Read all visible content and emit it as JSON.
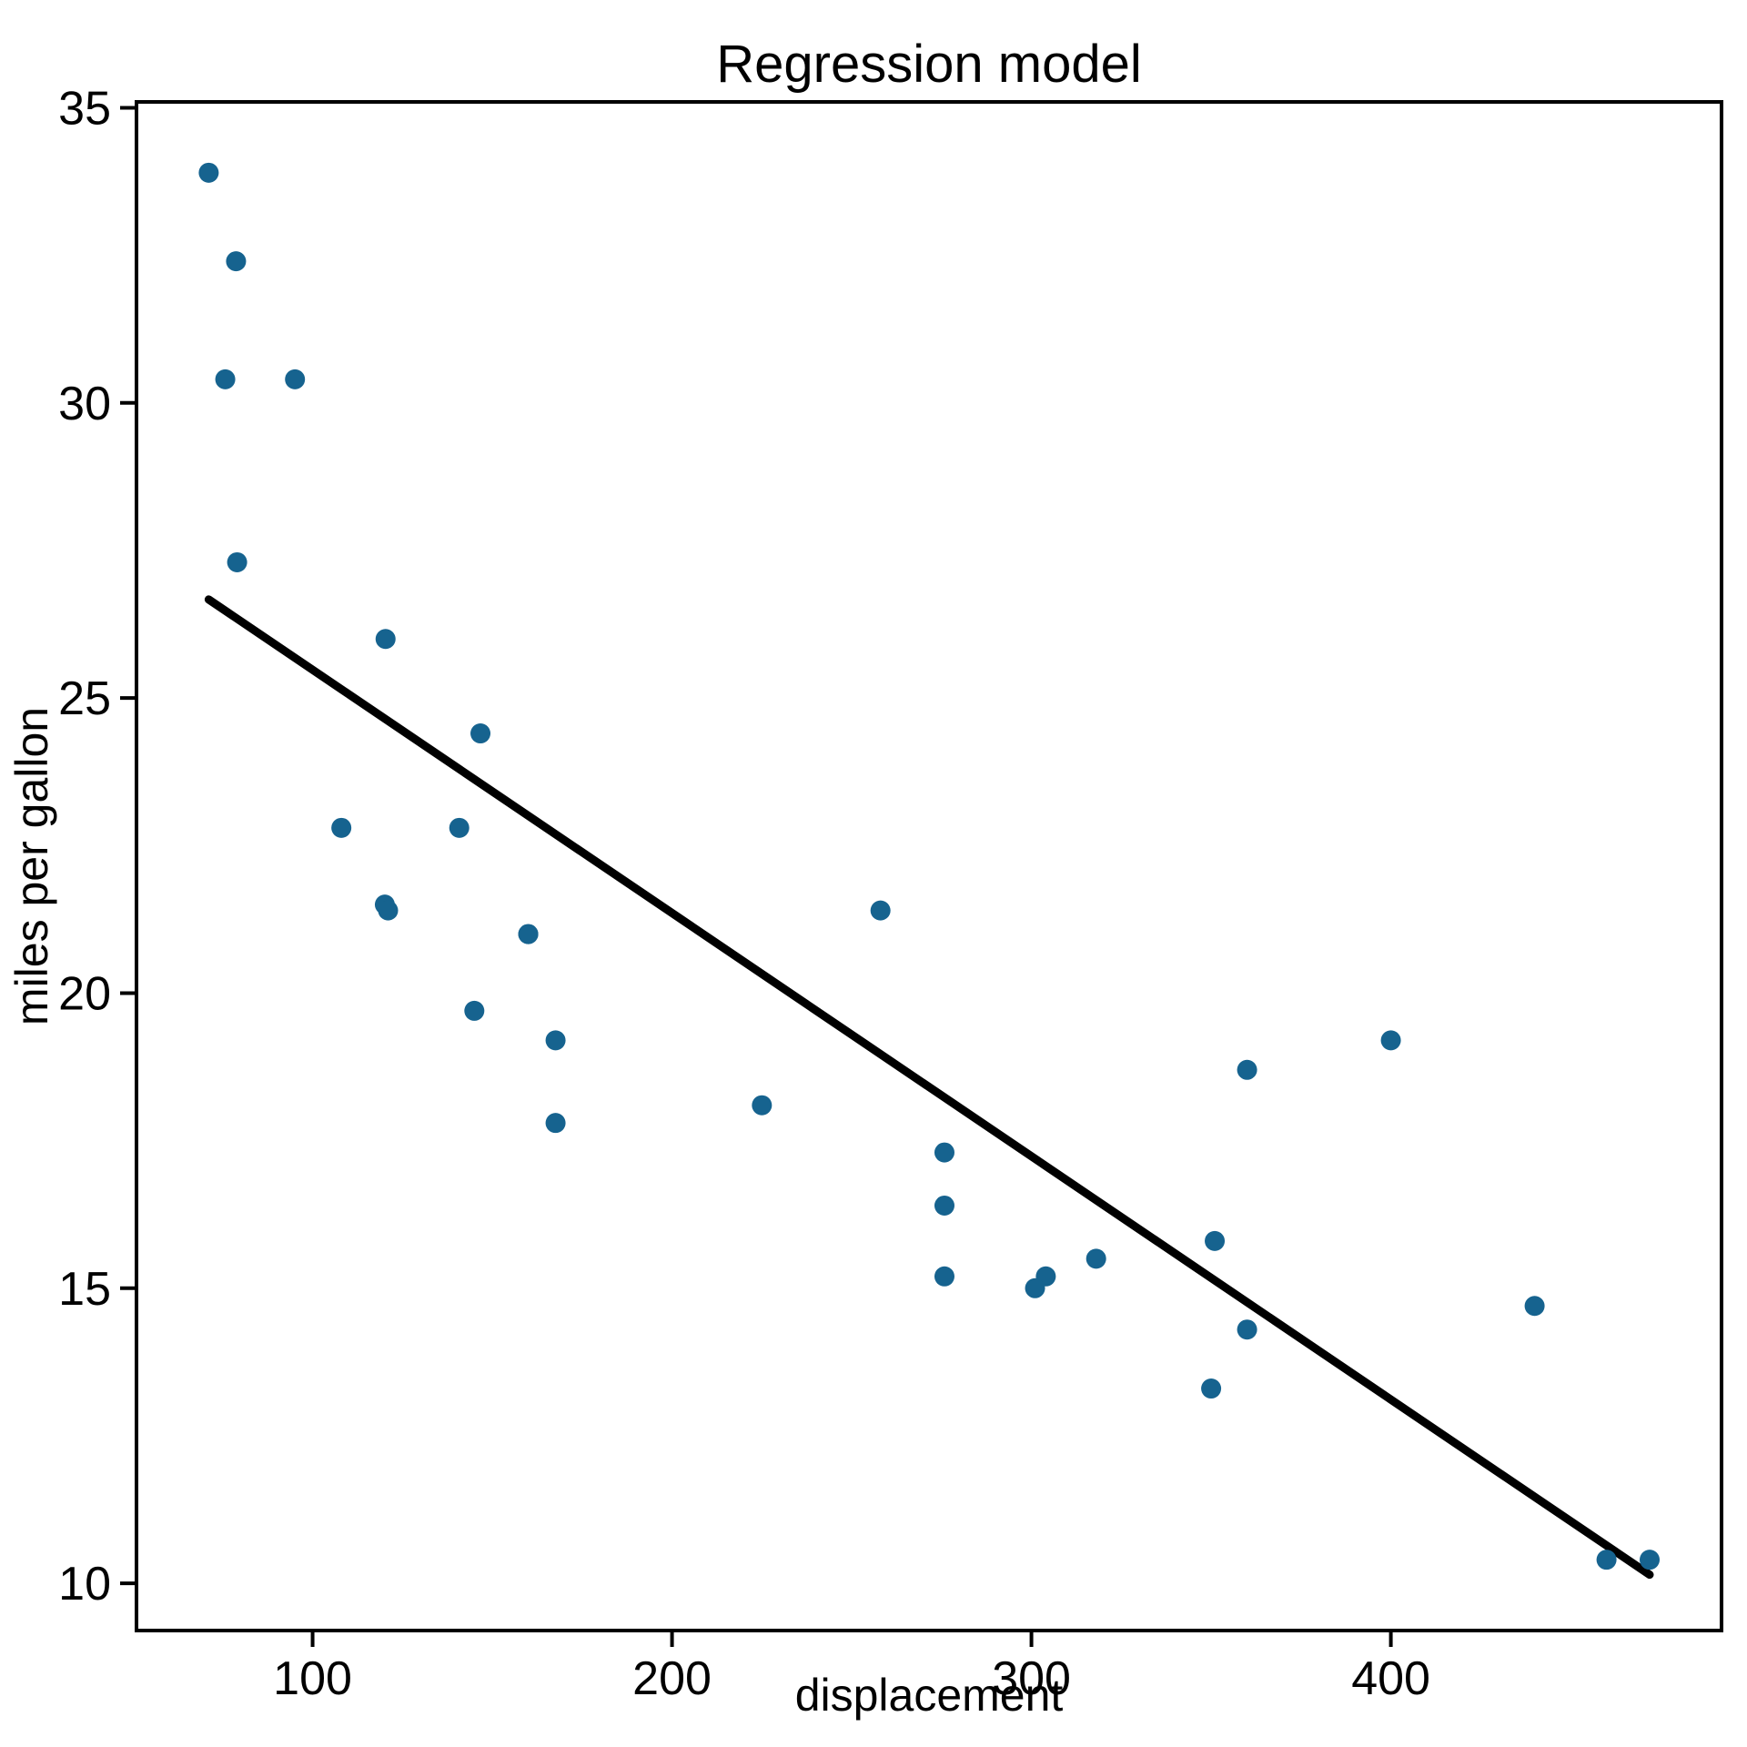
{
  "chart_data": {
    "type": "scatter",
    "title": "Regression model",
    "xlabel": "displacement",
    "ylabel": "miles per gallon",
    "xlim": [
      51,
      492
    ],
    "ylim": [
      9.2,
      35.1
    ],
    "x_ticks": [
      100,
      200,
      300,
      400
    ],
    "y_ticks": [
      10,
      15,
      20,
      25,
      30,
      35
    ],
    "grid": false,
    "legend": "none",
    "point_color": "#16638f",
    "line_color": "#000000",
    "points": [
      [
        160.0,
        21.0
      ],
      [
        160.0,
        21.0
      ],
      [
        108.0,
        22.8
      ],
      [
        258.0,
        21.4
      ],
      [
        360.0,
        18.7
      ],
      [
        225.0,
        18.1
      ],
      [
        360.0,
        14.3
      ],
      [
        146.7,
        24.4
      ],
      [
        140.8,
        22.8
      ],
      [
        167.6,
        19.2
      ],
      [
        167.6,
        17.8
      ],
      [
        275.8,
        16.4
      ],
      [
        275.8,
        17.3
      ],
      [
        275.8,
        15.2
      ],
      [
        472.0,
        10.4
      ],
      [
        460.0,
        10.4
      ],
      [
        440.0,
        14.7
      ],
      [
        78.7,
        32.4
      ],
      [
        75.7,
        30.4
      ],
      [
        71.1,
        33.9
      ],
      [
        120.1,
        21.5
      ],
      [
        318.0,
        15.5
      ],
      [
        304.0,
        15.2
      ],
      [
        350.0,
        13.3
      ],
      [
        400.0,
        19.2
      ],
      [
        79.0,
        27.3
      ],
      [
        120.3,
        26.0
      ],
      [
        95.1,
        30.4
      ],
      [
        351.0,
        15.8
      ],
      [
        145.0,
        19.7
      ],
      [
        301.0,
        15.0
      ],
      [
        121.0,
        21.4
      ]
    ],
    "regression_line": {
      "slope": -0.041215,
      "intercept": 29.59985,
      "x_start": 71.1,
      "x_end": 472.0
    }
  }
}
